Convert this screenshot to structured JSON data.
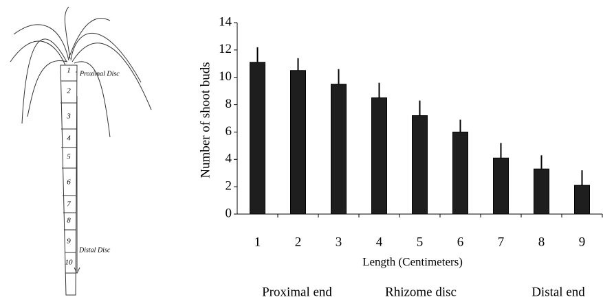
{
  "chart_data": {
    "type": "bar",
    "categories": [
      "1",
      "2",
      "3",
      "4",
      "5",
      "6",
      "7",
      "8",
      "9"
    ],
    "values": [
      11.1,
      10.5,
      9.5,
      8.5,
      7.2,
      6.0,
      4.1,
      3.3,
      2.1
    ],
    "errors": [
      1.1,
      0.9,
      1.1,
      1.1,
      1.1,
      0.9,
      1.1,
      1.0,
      1.1
    ],
    "color": "#1e1e1e",
    "ylim": [
      0,
      14
    ],
    "yticks": [
      0,
      2,
      4,
      6,
      8,
      10,
      12,
      14
    ],
    "xlabel": "Length (Centimeters)",
    "ylabel": "Number of shoot buds",
    "annotations": [
      "Proximal end",
      "Rhizome disc",
      "Distal end"
    ]
  },
  "sketch": {
    "top_label": "Proximal Disc",
    "bottom_label": "Distal Disc",
    "segments": [
      "1",
      "2",
      "3",
      "4",
      "5",
      "6",
      "7",
      "8",
      "9",
      "10"
    ]
  }
}
